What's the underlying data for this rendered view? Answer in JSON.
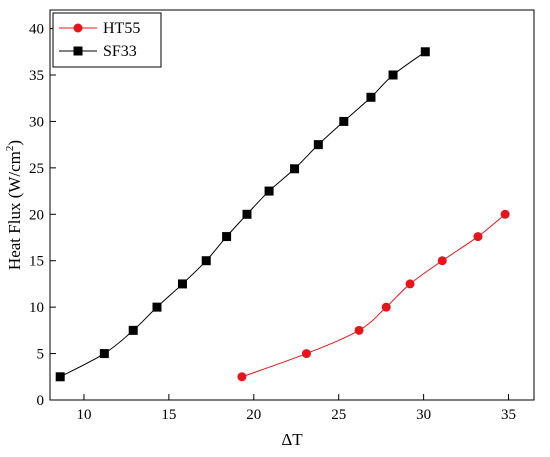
{
  "chart_data": {
    "type": "line",
    "xlabel": "ΔT",
    "ylabel_main": "Heat Flux (W/cm",
    "ylabel_sup": "2",
    "ylabel_end": ")",
    "xlim": [
      8,
      36.5
    ],
    "ylim": [
      0,
      42
    ],
    "xticks": [
      10,
      15,
      20,
      25,
      30,
      35
    ],
    "yticks": [
      0,
      5,
      10,
      15,
      20,
      25,
      30,
      35,
      40
    ],
    "grid": false,
    "legend_position": "top-left",
    "series": [
      {
        "name": "HT55",
        "color": "#e8141c",
        "marker": "circle",
        "x": [
          19.3,
          23.1,
          26.2,
          27.8,
          29.2,
          31.1,
          33.2,
          34.8
        ],
        "y": [
          2.5,
          5.0,
          7.5,
          10.0,
          12.5,
          15.0,
          17.6,
          20.0
        ]
      },
      {
        "name": "SF33",
        "color": "#000000",
        "marker": "square",
        "x": [
          8.6,
          11.2,
          12.9,
          14.3,
          15.8,
          17.2,
          18.4,
          19.6,
          20.9,
          22.4,
          23.8,
          25.3,
          26.9,
          28.2,
          30.1
        ],
        "y": [
          2.5,
          5.0,
          7.5,
          10.0,
          12.5,
          15.0,
          17.6,
          20.0,
          22.5,
          24.9,
          27.5,
          30.0,
          32.6,
          35.0,
          37.5
        ]
      }
    ]
  }
}
